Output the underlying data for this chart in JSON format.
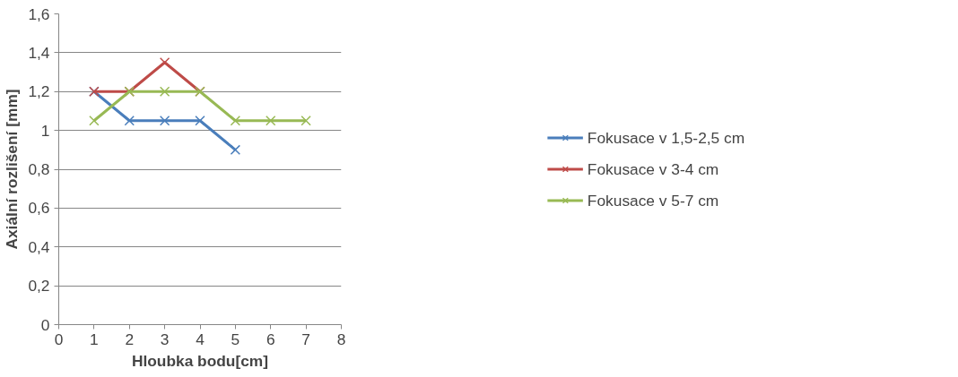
{
  "chart_data": {
    "type": "line",
    "xlabel": "Hloubka bodu[cm]",
    "ylabel": "Axiální rozlišení [mm]",
    "xlim": [
      0,
      8
    ],
    "xticks": [
      0,
      1,
      2,
      3,
      4,
      5,
      6,
      7,
      8
    ],
    "ylim": [
      0,
      1.6
    ],
    "yticks": [
      0,
      {
        "value": 0.2,
        "label": "0,2"
      },
      {
        "value": 0.4,
        "label": "0,4"
      },
      {
        "value": 0.6,
        "label": "0,6"
      },
      {
        "value": 0.8,
        "label": "0,8"
      },
      1,
      {
        "value": 1.2,
        "label": "1,2"
      },
      {
        "value": 1.4,
        "label": "1,4"
      },
      {
        "value": 1.6,
        "label": "1,6"
      }
    ],
    "grid": "y",
    "legend": "right",
    "marker": "cross",
    "line_style": "solid",
    "series": [
      {
        "name": "Fokusace v 1,5-2,5 cm",
        "color": "#4a7ebb",
        "x": [
          1,
          2,
          3,
          4,
          5
        ],
        "values": [
          1.2,
          1.05,
          1.05,
          1.05,
          0.9
        ]
      },
      {
        "name": "Fokusace v 3-4 cm",
        "color": "#be4b48",
        "x": [
          1,
          2,
          3,
          4
        ],
        "values": [
          1.2,
          1.2,
          1.35,
          1.2
        ]
      },
      {
        "name": "Fokusace v 5-7 cm",
        "color": "#98b954",
        "x": [
          1,
          2,
          3,
          4,
          5,
          6,
          7
        ],
        "values": [
          1.05,
          1.2,
          1.2,
          1.2,
          1.05,
          1.05,
          1.05
        ]
      }
    ]
  }
}
